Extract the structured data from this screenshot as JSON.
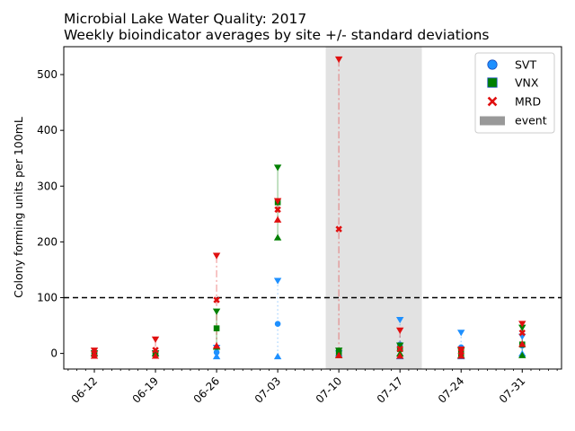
{
  "chart_data": {
    "type": "scatter",
    "title": "Microbial Lake Water Quality: 2017",
    "subtitle": "Weekly bioindicator averages by site +/- standard deviations",
    "xlabel": "",
    "ylabel": "Colony forming units per 100mL",
    "x_tick_labels": [
      "06-12",
      "06-19",
      "06-26",
      "07-03",
      "07-10",
      "07-17",
      "07-24",
      "07-31"
    ],
    "y_ticks": [
      0,
      100,
      200,
      300,
      400,
      500
    ],
    "ylim": [
      -28,
      550
    ],
    "xlim_days": [
      -3.5,
      53.5
    ],
    "threshold": 100,
    "event_span_days": [
      26.5,
      37.5
    ],
    "event_label": "event",
    "series": [
      {
        "name": "SVT",
        "color": "#1e90ff",
        "marker": "circle",
        "linestyle": "dotted",
        "x_days": [
          0,
          7,
          14,
          21,
          28,
          35,
          42,
          49
        ],
        "mean": [
          0,
          0,
          2,
          53,
          0,
          16,
          11,
          14
        ],
        "upper": [
          0,
          0,
          10,
          130,
          0,
          60,
          37,
          30
        ],
        "lower": [
          0,
          0,
          -5,
          -5,
          0,
          -5,
          -5,
          0
        ]
      },
      {
        "name": "VNX",
        "color": "#008000",
        "marker": "square",
        "linestyle": "solid",
        "x_days": [
          0,
          7,
          14,
          21,
          28,
          35,
          42,
          49
        ],
        "mean": [
          0,
          0,
          45,
          271,
          2,
          8,
          0,
          16
        ],
        "upper": [
          0,
          0,
          75,
          333,
          5,
          14,
          5,
          46
        ],
        "lower": [
          0,
          0,
          12,
          208,
          -3,
          0,
          -3,
          -3
        ]
      },
      {
        "name": "MRD",
        "color": "#e01010",
        "marker": "x",
        "linestyle": "dashdot",
        "x_days": [
          0,
          7,
          14,
          21,
          28,
          35,
          42,
          49
        ],
        "mean": [
          0,
          6,
          96,
          258,
          223,
          8,
          3,
          37
        ],
        "upper": [
          5,
          25,
          175,
          273,
          527,
          41,
          7,
          53
        ],
        "lower": [
          -4,
          -4,
          14,
          240,
          -3,
          -4,
          -4,
          17
        ]
      }
    ],
    "legend": {
      "location": "top-right",
      "entries": [
        "SVT",
        "VNX",
        "MRD",
        "event"
      ]
    }
  }
}
